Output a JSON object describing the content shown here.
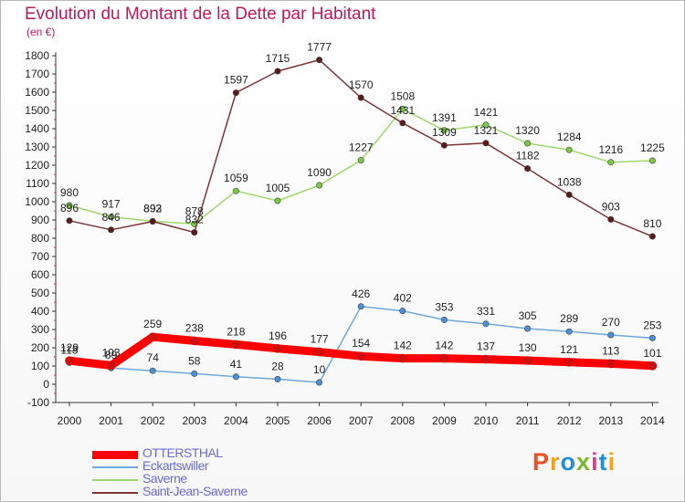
{
  "page": {
    "title": "Evolution du Montant de la Dette par Habitant",
    "subtitle": "(en €)",
    "logo_text": "Proxiti",
    "logo_colors": [
      "#e8512a",
      "#f2a31b",
      "#1f8ed6",
      "#7cb82f",
      "#e23a8d",
      "#1f8ed6",
      "#f2a31b"
    ]
  },
  "chart_data": {
    "type": "line",
    "title": "Evolution du Montant de la Dette par Habitant",
    "subtitle": "(en €)",
    "xlabel": "",
    "ylabel": "",
    "x": [
      2000,
      2001,
      2002,
      2003,
      2004,
      2005,
      2006,
      2007,
      2008,
      2009,
      2010,
      2011,
      2012,
      2013,
      2014
    ],
    "ylim": [
      -100,
      1800
    ],
    "yticks": [
      -100,
      0,
      100,
      200,
      300,
      400,
      500,
      600,
      700,
      800,
      900,
      1000,
      1100,
      1200,
      1300,
      1400,
      1500,
      1600,
      1700,
      1800
    ],
    "grid": false,
    "legend_position": "bottom-left",
    "series": [
      {
        "name": "OTTERSTHAL",
        "color": "#ff0000",
        "marker": "#cc1010",
        "label_color": "#222222",
        "emphasis": true,
        "values": [
          129,
          103,
          259,
          238,
          218,
          196,
          177,
          154,
          142,
          142,
          137,
          130,
          121,
          113,
          101
        ]
      },
      {
        "name": "Eckartswiller",
        "color": "#6fa8dc",
        "marker": "#4a90d9",
        "label_color": "#222222",
        "emphasis": false,
        "values": [
          118,
          89,
          74,
          58,
          41,
          28,
          10,
          426,
          402,
          353,
          331,
          305,
          289,
          270,
          253
        ]
      },
      {
        "name": "Saverne",
        "color": "#9fd86b",
        "marker": "#7ac943",
        "label_color": "#222222",
        "emphasis": false,
        "values": [
          980,
          917,
          893,
          878,
          1059,
          1005,
          1090,
          1227,
          1508,
          1391,
          1421,
          1320,
          1284,
          1216,
          1225
        ]
      },
      {
        "name": "Saint-Jean-Saverne",
        "color": "#7b3737",
        "marker": "#5a1a1a",
        "label_color": "#222222",
        "emphasis": false,
        "values": [
          896,
          846,
          892,
          832,
          1597,
          1715,
          1777,
          1570,
          1431,
          1309,
          1321,
          1182,
          1038,
          903,
          810
        ]
      }
    ]
  }
}
